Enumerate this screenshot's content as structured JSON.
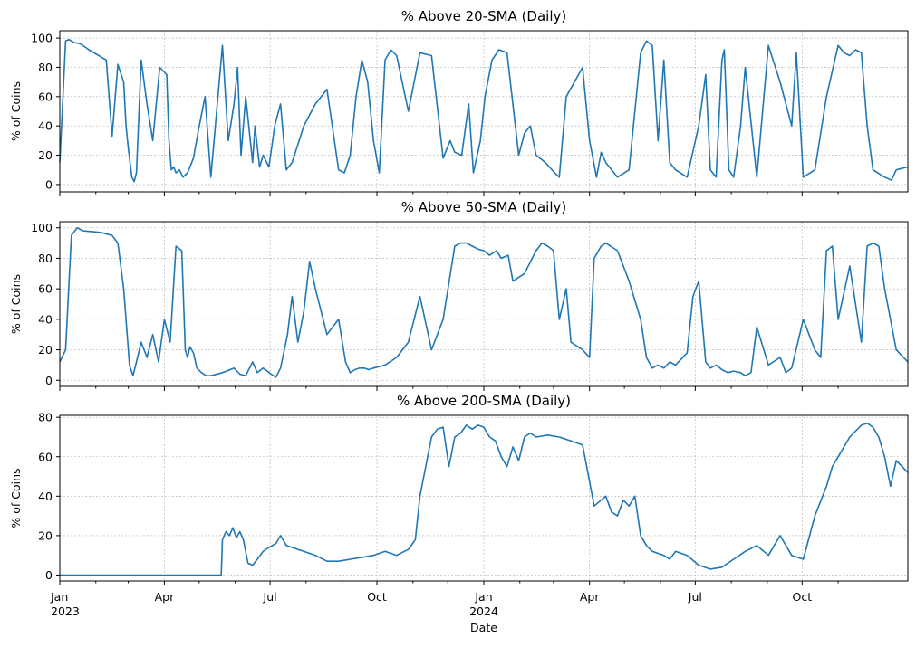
{
  "chart_data": [
    {
      "type": "line",
      "title": "% Above 20-SMA (Daily)",
      "ylabel": "% of Coins",
      "xlabel": "",
      "ylim": [
        -5,
        105
      ],
      "yticks": [
        "0",
        "20",
        "40",
        "60",
        "80",
        "100"
      ],
      "grid": true,
      "series": [
        {
          "name": "% Above 20-SMA",
          "x_days": [
            0,
            5,
            8,
            12,
            18,
            25,
            40,
            45,
            50,
            55,
            57,
            59,
            62,
            64,
            66,
            70,
            75,
            80,
            86,
            92,
            94,
            96,
            98,
            100,
            103,
            106,
            110,
            115,
            120,
            125,
            130,
            140,
            145,
            150,
            153,
            156,
            160,
            166,
            168,
            172,
            175,
            180,
            185,
            190,
            195,
            200,
            210,
            220,
            230,
            240,
            245,
            250,
            255,
            260,
            265,
            270,
            275,
            280,
            285,
            290,
            300,
            310,
            320,
            330,
            336,
            340,
            346,
            352,
            356,
            362,
            366,
            372,
            378,
            385,
            395,
            400,
            405,
            410,
            418,
            426,
            430,
            436,
            450,
            456,
            462,
            466,
            470,
            480,
            490,
            500,
            505,
            510,
            515,
            520,
            525,
            530,
            540,
            550,
            556,
            560,
            565,
            570,
            572,
            576,
            580,
            586,
            590,
            600,
            610,
            620,
            630,
            634,
            640,
            650,
            660,
            670,
            675,
            680,
            685,
            690,
            695,
            700,
            710,
            716,
            720,
            730
          ],
          "values": [
            15,
            98,
            99,
            97,
            96,
            92,
            85,
            33,
            82,
            70,
            40,
            25,
            5,
            2,
            8,
            85,
            55,
            30,
            80,
            75,
            30,
            10,
            12,
            8,
            10,
            5,
            8,
            18,
            40,
            60,
            5,
            95,
            30,
            55,
            80,
            20,
            60,
            15,
            40,
            12,
            20,
            12,
            40,
            55,
            10,
            15,
            40,
            55,
            65,
            10,
            8,
            20,
            60,
            85,
            70,
            30,
            8,
            85,
            92,
            88,
            50,
            90,
            88,
            18,
            30,
            22,
            20,
            55,
            8,
            30,
            60,
            85,
            92,
            90,
            20,
            35,
            40,
            20,
            15,
            8,
            5,
            60,
            80,
            30,
            5,
            22,
            15,
            5,
            10,
            90,
            98,
            95,
            30,
            85,
            15,
            10,
            5,
            40,
            75,
            10,
            5,
            85,
            92,
            10,
            5,
            40,
            80,
            5,
            95,
            70,
            40,
            90,
            5,
            10,
            60,
            95,
            90,
            88,
            92,
            90,
            40,
            10,
            5,
            3,
            10,
            12
          ]
        }
      ]
    },
    {
      "type": "line",
      "title": "% Above 50-SMA (Daily)",
      "ylabel": "% of Coins",
      "xlabel": "",
      "ylim": [
        -4,
        104
      ],
      "yticks": [
        "0",
        "20",
        "40",
        "60",
        "80",
        "100"
      ],
      "grid": true,
      "series": [
        {
          "name": "% Above 50-SMA",
          "x_days": [
            0,
            5,
            10,
            15,
            20,
            35,
            45,
            50,
            55,
            60,
            63,
            66,
            70,
            75,
            80,
            85,
            90,
            95,
            100,
            105,
            108,
            110,
            112,
            115,
            118,
            122,
            126,
            130,
            140,
            150,
            155,
            160,
            166,
            170,
            175,
            182,
            186,
            190,
            196,
            200,
            205,
            210,
            215,
            220,
            230,
            240,
            246,
            250,
            254,
            258,
            262,
            266,
            270,
            280,
            290,
            300,
            310,
            320,
            330,
            340,
            345,
            350,
            355,
            360,
            365,
            370,
            376,
            380,
            386,
            390,
            400,
            410,
            415,
            420,
            425,
            430,
            436,
            440,
            450,
            456,
            460,
            466,
            470,
            480,
            490,
            500,
            505,
            510,
            515,
            520,
            525,
            530,
            540,
            545,
            550,
            556,
            560,
            565,
            570,
            575,
            580,
            586,
            590,
            595,
            600,
            610,
            620,
            625,
            630,
            640,
            650,
            655,
            660,
            665,
            670,
            680,
            690,
            695,
            700,
            705,
            710,
            720,
            730
          ],
          "values": [
            12,
            20,
            95,
            100,
            98,
            97,
            95,
            90,
            60,
            10,
            3,
            12,
            25,
            15,
            30,
            12,
            40,
            25,
            88,
            85,
            20,
            15,
            22,
            18,
            8,
            5,
            3,
            3,
            5,
            8,
            4,
            3,
            12,
            5,
            8,
            4,
            2,
            8,
            30,
            55,
            25,
            45,
            78,
            60,
            30,
            40,
            12,
            5,
            7,
            8,
            8,
            7,
            8,
            10,
            15,
            25,
            55,
            20,
            40,
            88,
            90,
            90,
            88,
            86,
            85,
            82,
            85,
            80,
            82,
            65,
            70,
            85,
            90,
            88,
            85,
            40,
            60,
            25,
            20,
            15,
            80,
            88,
            90,
            85,
            65,
            40,
            15,
            8,
            10,
            8,
            12,
            10,
            18,
            55,
            65,
            12,
            8,
            10,
            7,
            5,
            6,
            5,
            3,
            5,
            35,
            10,
            15,
            5,
            8,
            40,
            20,
            15,
            85,
            88,
            40,
            75,
            25,
            88,
            90,
            88,
            60,
            20,
            12
          ]
        }
      ]
    },
    {
      "type": "line",
      "title": "% Above 200-SMA (Daily)",
      "ylabel": "% of Coins",
      "xlabel": "Date",
      "ylim": [
        -3,
        81
      ],
      "yticks": [
        "0",
        "20",
        "40",
        "60",
        "80"
      ],
      "grid": true,
      "x_ticks": [
        {
          "label": "Jan",
          "sub": "2023"
        },
        {
          "label": "Apr",
          "sub": ""
        },
        {
          "label": "Jul",
          "sub": ""
        },
        {
          "label": "Oct",
          "sub": ""
        },
        {
          "label": "Jan",
          "sub": "2024"
        },
        {
          "label": "Apr",
          "sub": ""
        },
        {
          "label": "Jul",
          "sub": ""
        },
        {
          "label": "Oct",
          "sub": ""
        }
      ],
      "series": [
        {
          "name": "% Above 200-SMA",
          "x_days": [
            0,
            139,
            140,
            143,
            146,
            149,
            152,
            155,
            158,
            162,
            166,
            170,
            175,
            180,
            186,
            190,
            195,
            200,
            210,
            220,
            230,
            240,
            250,
            260,
            270,
            280,
            290,
            300,
            306,
            310,
            315,
            320,
            325,
            330,
            335,
            340,
            345,
            350,
            355,
            360,
            365,
            370,
            375,
            380,
            385,
            390,
            395,
            400,
            405,
            410,
            420,
            430,
            440,
            450,
            460,
            470,
            475,
            480,
            485,
            490,
            495,
            500,
            505,
            510,
            520,
            525,
            530,
            540,
            550,
            560,
            570,
            580,
            590,
            600,
            610,
            620,
            630,
            640,
            650,
            660,
            665,
            670,
            680,
            690,
            695,
            700,
            705,
            710,
            715,
            720,
            725,
            730
          ],
          "values": [
            0,
            0,
            18,
            22,
            20,
            24,
            19,
            22,
            18,
            6,
            5,
            8,
            12,
            14,
            16,
            20,
            15,
            14,
            12,
            10,
            7,
            7,
            8,
            9,
            10,
            12,
            10,
            13,
            18,
            40,
            55,
            70,
            74,
            75,
            55,
            70,
            72,
            76,
            74,
            76,
            75,
            70,
            68,
            60,
            55,
            65,
            58,
            70,
            72,
            70,
            71,
            70,
            68,
            66,
            35,
            40,
            32,
            30,
            38,
            35,
            40,
            20,
            15,
            12,
            10,
            8,
            12,
            10,
            5,
            3,
            4,
            8,
            12,
            15,
            10,
            20,
            10,
            8,
            30,
            45,
            55,
            60,
            70,
            76,
            77,
            75,
            70,
            60,
            45,
            58,
            55,
            52
          ]
        }
      ]
    }
  ]
}
